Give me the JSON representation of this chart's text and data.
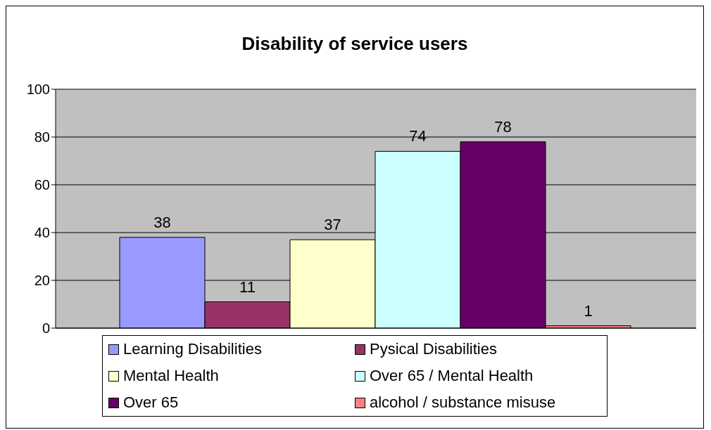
{
  "chart_data": {
    "type": "bar",
    "title": "Disability of service users",
    "categories": [
      null
    ],
    "series": [
      {
        "name": "Learning Disabilities",
        "color": "#9999ff",
        "values": [
          38
        ]
      },
      {
        "name": "Pysical Disabilities",
        "color": "#993366",
        "values": [
          11
        ]
      },
      {
        "name": "Mental Health",
        "color": "#ffffcc",
        "values": [
          37
        ]
      },
      {
        "name": "Over 65 / Mental Health",
        "color": "#ccffff",
        "values": [
          74
        ]
      },
      {
        "name": "Over 65",
        "color": "#660066",
        "values": [
          78
        ]
      },
      {
        "name": "alcohol / substance misuse",
        "color": "#ff8080",
        "values": [
          1
        ]
      }
    ],
    "ylim": [
      0,
      100
    ],
    "yticks": [
      0,
      20,
      40,
      60,
      80,
      100
    ],
    "grid": "y",
    "legend": "bottom",
    "data_labels": true
  }
}
